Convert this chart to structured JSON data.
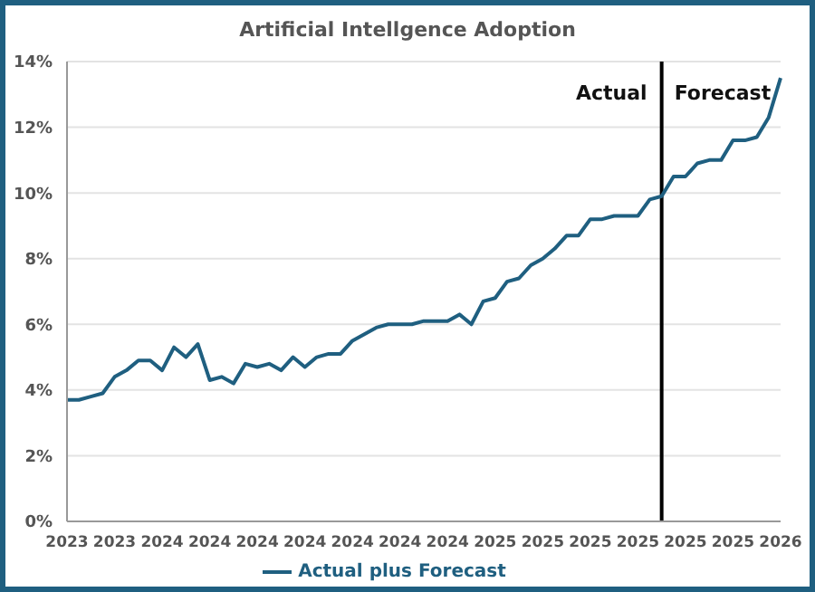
{
  "chart_data": {
    "type": "line",
    "title": "Artificial Intellgence Adoption",
    "categories": [
      "2023",
      null,
      null,
      null,
      "2023",
      null,
      null,
      null,
      "2024",
      null,
      null,
      null,
      "2024",
      null,
      null,
      null,
      "2024",
      null,
      null,
      null,
      "2024",
      null,
      null,
      null,
      "2024",
      null,
      null,
      null,
      "2024",
      null,
      null,
      null,
      "2024",
      null,
      null,
      null,
      "2025",
      null,
      null,
      null,
      "2025",
      null,
      null,
      null,
      "2025",
      null,
      null,
      null,
      "2025",
      null,
      null,
      null,
      "2025",
      null,
      null,
      null,
      "2025",
      null,
      null,
      null,
      "2026"
    ],
    "series": [
      {
        "name": "Actual plus Forecast",
        "color": "#1f5f80",
        "values": [
          3.7,
          3.7,
          3.8,
          3.9,
          4.4,
          4.6,
          4.9,
          4.9,
          4.6,
          5.3,
          5.0,
          5.4,
          4.3,
          4.4,
          4.2,
          4.8,
          4.7,
          4.8,
          4.6,
          5.0,
          4.7,
          5.0,
          5.1,
          5.1,
          5.5,
          5.7,
          5.9,
          6.0,
          6.0,
          6.0,
          6.1,
          6.1,
          6.1,
          6.3,
          6.0,
          6.7,
          6.8,
          7.3,
          7.4,
          7.8,
          8.0,
          8.3,
          8.7,
          8.7,
          9.2,
          9.2,
          9.3,
          9.3,
          9.3,
          9.8,
          9.9,
          10.5,
          10.5,
          10.9,
          11.0,
          11.0,
          11.6,
          11.6,
          11.7,
          12.3,
          13.5
        ]
      }
    ],
    "ylim": [
      0,
      14
    ],
    "yticks": [
      {
        "value": 0,
        "label": "0%"
      },
      {
        "value": 2,
        "label": "2%"
      },
      {
        "value": 4,
        "label": "4%"
      },
      {
        "value": 6,
        "label": "6%"
      },
      {
        "value": 8,
        "label": "8%"
      },
      {
        "value": 10,
        "label": "10%"
      },
      {
        "value": 12,
        "label": "12%"
      },
      {
        "value": 14,
        "label": "14%"
      }
    ],
    "annotations": [
      "Actual",
      "Forecast"
    ],
    "grid": "y",
    "legend": "bottom",
    "marker": "none",
    "line_style": "solid"
  }
}
